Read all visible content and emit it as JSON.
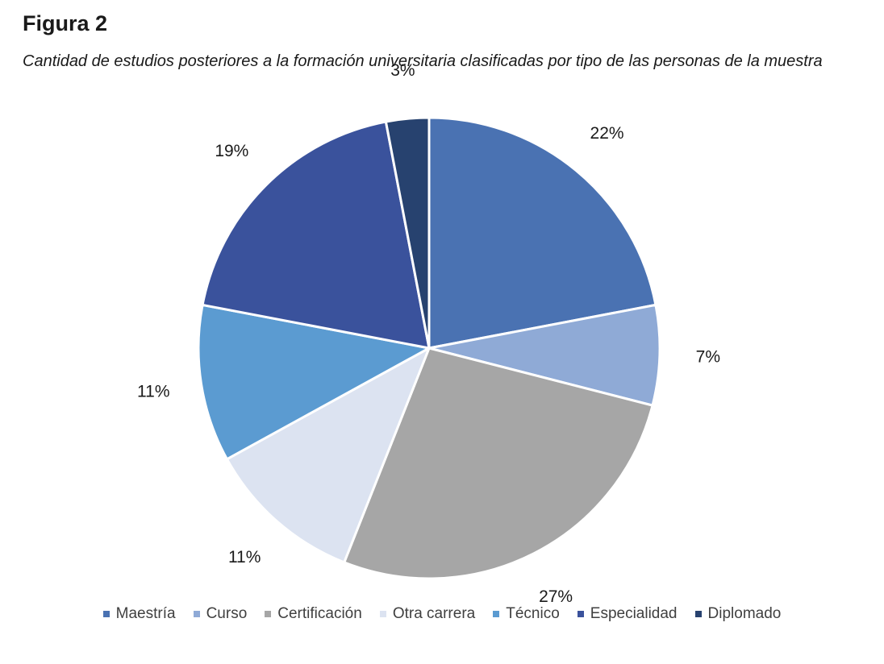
{
  "figure": {
    "label": "Figura 2",
    "caption": "Cantidad de estudios posteriores a la formación universitaria clasificadas por tipo de las personas de la muestra"
  },
  "chart_data": {
    "type": "pie",
    "title": "",
    "start_angle_deg": 0,
    "direction": "clockwise",
    "legend_position": "bottom",
    "slices": [
      {
        "name": "Maestría",
        "value": 22,
        "label": "22%",
        "color": "#4a72b2"
      },
      {
        "name": "Curso",
        "value": 7,
        "label": "7%",
        "color": "#8faad6"
      },
      {
        "name": "Certificación",
        "value": 27,
        "label": "27%",
        "color": "#a6a6a6"
      },
      {
        "name": "Otra carrera",
        "value": 11,
        "label": "11%",
        "color": "#dce3f1"
      },
      {
        "name": "Técnico",
        "value": 11,
        "label": "11%",
        "color": "#5b9bd1"
      },
      {
        "name": "Especialidad",
        "value": 19,
        "label": "19%",
        "color": "#3a529c"
      },
      {
        "name": "Diplomado",
        "value": 3,
        "label": "3%",
        "color": "#27426f"
      }
    ]
  }
}
